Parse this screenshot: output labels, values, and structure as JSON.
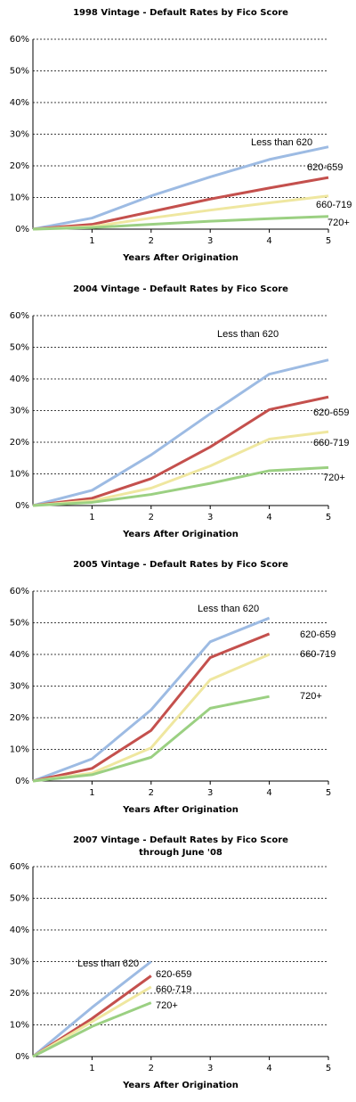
{
  "chart_data": [
    {
      "type": "line",
      "title": "1998 Vintage - Default Rates by Fico Score",
      "x_label": "Years After Origination",
      "x": [
        0,
        1,
        2,
        3,
        4,
        5
      ],
      "xlim": [
        0,
        5
      ],
      "xticks": [
        1,
        2,
        3,
        4,
        5
      ],
      "ylim": [
        0,
        60
      ],
      "yticks": [
        {
          "value": 0,
          "label": "0%"
        },
        {
          "value": 10,
          "label": "10%"
        },
        {
          "value": 20,
          "label": "20%"
        },
        {
          "value": 30,
          "label": "30%"
        },
        {
          "value": 40,
          "label": "40%"
        },
        {
          "value": 50,
          "label": "50%"
        },
        {
          "value": 60,
          "label": "60%"
        }
      ],
      "grid": true,
      "series": [
        {
          "name": "Less than 620",
          "color": "#9dbbe3",
          "values": [
            0,
            3.5,
            10.5,
            16.5,
            22,
            26
          ]
        },
        {
          "name": "620-659",
          "color": "#c4504d",
          "values": [
            0,
            1.5,
            5.5,
            9.5,
            13,
            16.3
          ]
        },
        {
          "name": "660-719",
          "color": "#efe7a0",
          "values": [
            0,
            0.8,
            3.5,
            6,
            8.3,
            10.5
          ]
        },
        {
          "name": "720+",
          "color": "#9bd082",
          "values": [
            0,
            0.5,
            1.5,
            2.5,
            3.3,
            4
          ]
        }
      ]
    },
    {
      "type": "line",
      "title": "2004 Vintage - Default Rates by Fico Score",
      "x_label": "Years After Origination",
      "x": [
        0,
        1,
        2,
        3,
        4,
        5
      ],
      "xlim": [
        0,
        5
      ],
      "xticks": [
        1,
        2,
        3,
        4,
        5
      ],
      "ylim": [
        0,
        60
      ],
      "yticks": [
        {
          "value": 0,
          "label": "0%"
        },
        {
          "value": 10,
          "label": "10%"
        },
        {
          "value": 20,
          "label": "20%"
        },
        {
          "value": 30,
          "label": "30%"
        },
        {
          "value": 40,
          "label": "40%"
        },
        {
          "value": 50,
          "label": "50%"
        },
        {
          "value": 60,
          "label": "60%"
        }
      ],
      "grid": true,
      "series": [
        {
          "name": "Less than 620",
          "color": "#9dbbe3",
          "values": [
            0,
            4.8,
            16,
            29,
            41.5,
            46
          ]
        },
        {
          "name": "620-659",
          "color": "#c4504d",
          "values": [
            0,
            2.3,
            8.5,
            18.5,
            30.3,
            34.3
          ]
        },
        {
          "name": "660-719",
          "color": "#efe7a0",
          "values": [
            0,
            1.5,
            5.5,
            12.5,
            21,
            23.3
          ]
        },
        {
          "name": "720+",
          "color": "#9bd082",
          "values": [
            0,
            1,
            3.5,
            7,
            11,
            12
          ]
        }
      ]
    },
    {
      "type": "line",
      "title": "2005 Vintage - Default Rates by Fico Score",
      "x_label": "Years After Origination",
      "x": [
        0,
        1,
        2,
        3,
        4,
        5
      ],
      "xlim": [
        0,
        5
      ],
      "xticks": [
        1,
        2,
        3,
        4,
        5
      ],
      "ylim": [
        0,
        60
      ],
      "yticks": [
        {
          "value": 0,
          "label": "0%"
        },
        {
          "value": 10,
          "label": "10%"
        },
        {
          "value": 20,
          "label": "20%"
        },
        {
          "value": 30,
          "label": "30%"
        },
        {
          "value": 40,
          "label": "40%"
        },
        {
          "value": 50,
          "label": "50%"
        },
        {
          "value": 60,
          "label": "60%"
        }
      ],
      "grid": true,
      "series": [
        {
          "name": "Less than 620",
          "color": "#9dbbe3",
          "values": [
            0,
            7,
            22.5,
            44,
            51.5,
            null
          ]
        },
        {
          "name": "620-659",
          "color": "#c4504d",
          "values": [
            0,
            4,
            16,
            39,
            46.5,
            null
          ]
        },
        {
          "name": "660-719",
          "color": "#efe7a0",
          "values": [
            0,
            2.5,
            10.5,
            32,
            40,
            null
          ]
        },
        {
          "name": "720+",
          "color": "#9bd082",
          "values": [
            0,
            2,
            7.5,
            23,
            26.7,
            null
          ]
        }
      ]
    },
    {
      "type": "line",
      "title": "2007 Vintage - Default Rates by Fico Score",
      "subtitle": "through June '08",
      "x_label": "Years After Origination",
      "x": [
        0,
        1,
        2,
        3,
        4,
        5
      ],
      "xlim": [
        0,
        5
      ],
      "xticks": [
        1,
        2,
        3,
        4,
        5
      ],
      "ylim": [
        0,
        60
      ],
      "yticks": [
        {
          "value": 0,
          "label": "0%"
        },
        {
          "value": 10,
          "label": "10%"
        },
        {
          "value": 20,
          "label": "20%"
        },
        {
          "value": 30,
          "label": "30%"
        },
        {
          "value": 40,
          "label": "40%"
        },
        {
          "value": 50,
          "label": "50%"
        },
        {
          "value": 60,
          "label": "60%"
        }
      ],
      "grid": true,
      "series": [
        {
          "name": "Less than 620",
          "color": "#9dbbe3",
          "values": [
            0,
            15.5,
            30,
            null,
            null,
            null
          ]
        },
        {
          "name": "620-659",
          "color": "#c4504d",
          "values": [
            0,
            12,
            25.5,
            null,
            null,
            null
          ]
        },
        {
          "name": "660-719",
          "color": "#efe7a0",
          "values": [
            0,
            11,
            22,
            null,
            null,
            null
          ]
        },
        {
          "name": "720+",
          "color": "#9bd082",
          "values": [
            0,
            9.5,
            17,
            null,
            null,
            null
          ]
        }
      ]
    }
  ]
}
